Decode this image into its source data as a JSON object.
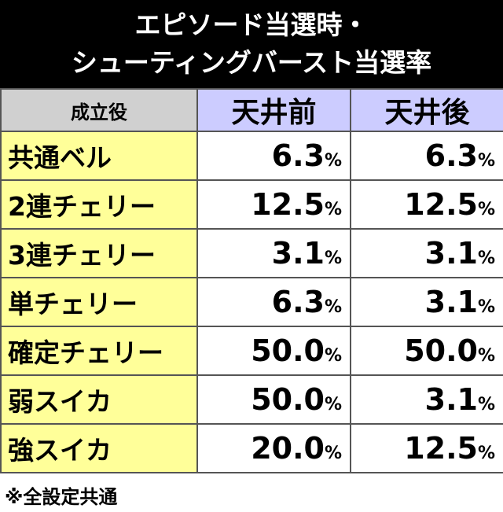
{
  "header": {
    "title": [
      "エピソード当選時・",
      "シューティングバースト当選率"
    ]
  },
  "table": {
    "columns": [
      "成立役",
      "天井前",
      "天井後"
    ],
    "rows": [
      [
        "共通ベル",
        "6.3%",
        "6.3%"
      ],
      [
        "2連チェリー",
        "12.5%",
        "12.5%"
      ],
      [
        "3連チェリー",
        "3.1%",
        "3.1%"
      ],
      [
        "単チェリー",
        "6.3%",
        "3.1%"
      ],
      [
        "確定チェリー",
        "50.0%",
        "50.0%"
      ],
      [
        "弱スイカ",
        "50.0%",
        "3.1%"
      ],
      [
        "強スイカ",
        "20.0%",
        "12.5%"
      ]
    ]
  },
  "footer": {
    "note": "※全設定共通"
  }
}
